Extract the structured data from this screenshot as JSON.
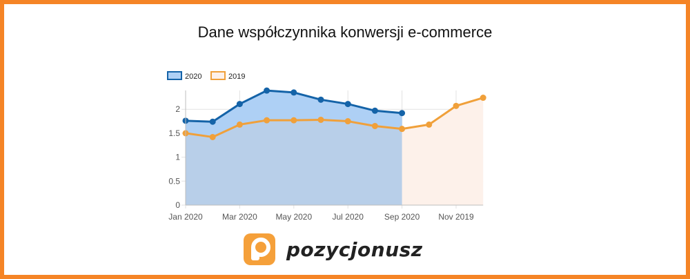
{
  "title": "Dane współczynnika konwersji e-commerce",
  "brand": {
    "name": "pozycjonusz"
  },
  "colors": {
    "frame": "#f58426",
    "series_2020_line": "#1463a8",
    "series_2020_fill": "#b8cfe9",
    "series_2020_fill_top": "#aed0f5",
    "series_2019_line": "#f0a03a",
    "series_2019_fill": "#fdf1ea",
    "logo": "#f5a03a"
  },
  "chart_data": {
    "type": "area",
    "title": "Dane współczynnika konwersji e-commerce",
    "x_tick_labels": [
      "Jan 2020",
      "Mar 2020",
      "May 2020",
      "Jul 2020",
      "Sep 2020",
      "Nov 2019"
    ],
    "x_tick_indices": [
      0,
      2,
      4,
      6,
      8,
      10
    ],
    "y_ticks": [
      "0",
      "0.5",
      "1",
      "1.5",
      "2"
    ],
    "ylim": [
      0,
      2.4
    ],
    "grid": true,
    "legend_position": "top-left",
    "series": [
      {
        "name": "2020",
        "values": [
          1.76,
          1.74,
          2.11,
          2.39,
          2.35,
          2.2,
          2.11,
          1.97,
          1.92
        ]
      },
      {
        "name": "2019",
        "values": [
          1.5,
          1.42,
          1.68,
          1.77,
          1.77,
          1.78,
          1.75,
          1.65,
          1.59,
          1.68,
          2.07,
          2.24
        ]
      }
    ]
  }
}
